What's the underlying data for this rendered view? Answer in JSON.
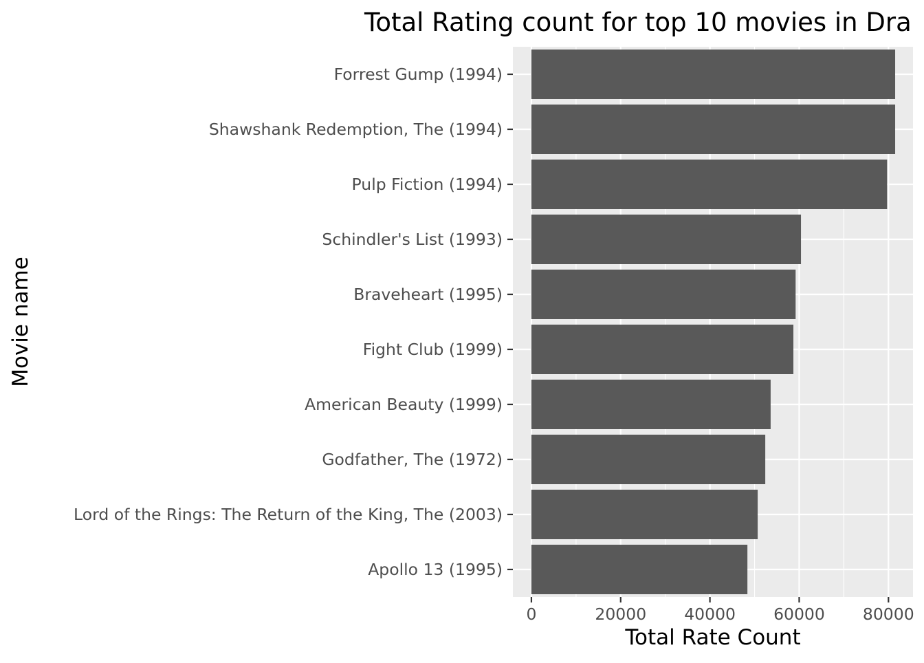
{
  "chart_data": {
    "type": "bar",
    "orientation": "horizontal",
    "title": "Total Rating count for top 10 movies in Dra",
    "xlabel": "Total Rate Count",
    "ylabel": "Movie name",
    "categories": [
      "Forrest Gump (1994)",
      "Shawshank Redemption, The (1994)",
      "Pulp Fiction (1994)",
      "Schindler's List (1993)",
      "Braveheart (1995)",
      "Fight Club (1999)",
      "American Beauty (1999)",
      "Godfather, The (1972)",
      "Lord of the Rings: The Return of the King, The (2003)",
      "Apollo 13 (1995)"
    ],
    "values": [
      81500,
      81500,
      79700,
      60400,
      59200,
      58700,
      53600,
      52400,
      50700,
      48400
    ],
    "xlim": [
      -4150,
      85500
    ],
    "xticks": [
      0,
      20000,
      40000,
      60000,
      80000
    ],
    "xtick_labels": [
      "0",
      "20000",
      "40000",
      "60000",
      "80000"
    ],
    "grid": true,
    "legend": "none",
    "colors": {
      "bar": "#595959",
      "panel": "#ebebeb",
      "grid": "#ffffff",
      "tick_text": "#4d4d4d",
      "tick_mark": "#333333"
    }
  }
}
